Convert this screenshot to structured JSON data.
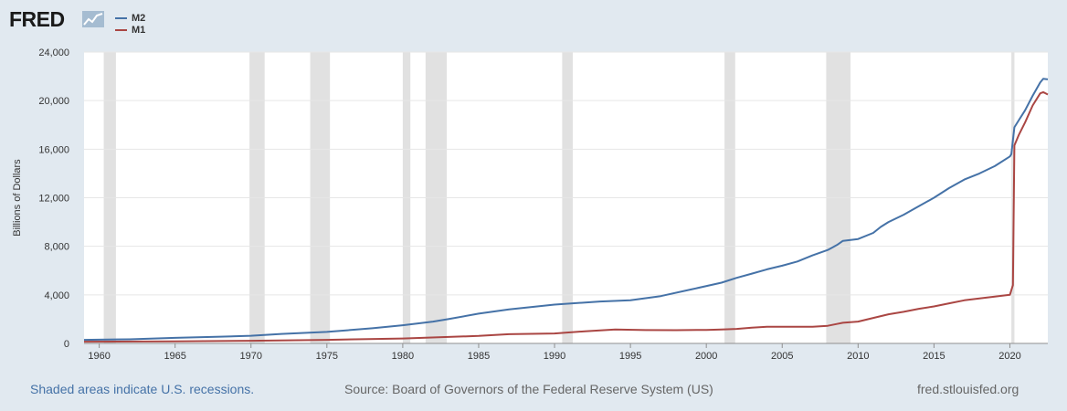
{
  "logo": {
    "text": "FRED",
    "icon": "fred-trend-icon"
  },
  "colors": {
    "background": "#e1e9f0",
    "plot": "#ffffff",
    "grid": "#e6e6e6",
    "recession": "#e1e1e1",
    "m2": "#4572a7",
    "m1": "#aa4643",
    "axis": "#8f8f8f"
  },
  "footer": {
    "recession_note": "Shaded areas indicate U.S. recessions.",
    "source": "Source: Board of Governors of the Federal Reserve System (US)",
    "site": "fred.stlouisfed.org"
  },
  "chart_data": {
    "type": "line",
    "title": "",
    "xlabel": "",
    "ylabel": "Billions of Dollars",
    "xlim": [
      1959.0,
      2022.5
    ],
    "ylim": [
      0,
      24000
    ],
    "x_ticks": [
      1960,
      1965,
      1970,
      1975,
      1980,
      1985,
      1990,
      1995,
      2000,
      2005,
      2010,
      2015,
      2020
    ],
    "y_ticks": [
      0,
      4000,
      8000,
      12000,
      16000,
      20000,
      24000
    ],
    "y_tick_labels": [
      "0",
      "4,000",
      "8,000",
      "12,000",
      "16,000",
      "20,000",
      "24,000"
    ],
    "grid": true,
    "legend": "top-left",
    "recessions": [
      [
        1960.3,
        1961.1
      ],
      [
        1969.9,
        1970.9
      ],
      [
        1973.9,
        1975.2
      ],
      [
        1980.0,
        1980.5
      ],
      [
        1981.5,
        1982.9
      ],
      [
        1990.5,
        1991.2
      ],
      [
        2001.2,
        2001.9
      ],
      [
        2007.9,
        2009.5
      ],
      [
        2020.1,
        2020.3
      ]
    ],
    "series": [
      {
        "name": "M2",
        "color": "#4572a7",
        "points": [
          [
            1959,
            290
          ],
          [
            1960,
            305
          ],
          [
            1962,
            340
          ],
          [
            1965,
            460
          ],
          [
            1968,
            560
          ],
          [
            1970,
            630
          ],
          [
            1972,
            780
          ],
          [
            1975,
            950
          ],
          [
            1978,
            1250
          ],
          [
            1980,
            1500
          ],
          [
            1982,
            1800
          ],
          [
            1983,
            2000
          ],
          [
            1985,
            2450
          ],
          [
            1987,
            2800
          ],
          [
            1990,
            3200
          ],
          [
            1993,
            3450
          ],
          [
            1995,
            3550
          ],
          [
            1997,
            3900
          ],
          [
            1999,
            4450
          ],
          [
            2001,
            5000
          ],
          [
            2002,
            5400
          ],
          [
            2003,
            5750
          ],
          [
            2004,
            6100
          ],
          [
            2005,
            6400
          ],
          [
            2006,
            6750
          ],
          [
            2007,
            7250
          ],
          [
            2008,
            7700
          ],
          [
            2008.6,
            8100
          ],
          [
            2009,
            8450
          ],
          [
            2010,
            8600
          ],
          [
            2011,
            9100
          ],
          [
            2011.5,
            9600
          ],
          [
            2012,
            10000
          ],
          [
            2013,
            10600
          ],
          [
            2014,
            11300
          ],
          [
            2015,
            12000
          ],
          [
            2016,
            12800
          ],
          [
            2017,
            13500
          ],
          [
            2018,
            14000
          ],
          [
            2019,
            14600
          ],
          [
            2020.0,
            15400
          ],
          [
            2020.1,
            15600
          ],
          [
            2020.3,
            17800
          ],
          [
            2020.6,
            18400
          ],
          [
            2021.0,
            19200
          ],
          [
            2021.5,
            20400
          ],
          [
            2022.0,
            21500
          ],
          [
            2022.2,
            21800
          ],
          [
            2022.5,
            21750
          ]
        ]
      },
      {
        "name": "M1",
        "color": "#aa4643",
        "points": [
          [
            1959,
            140
          ],
          [
            1965,
            170
          ],
          [
            1970,
            215
          ],
          [
            1975,
            290
          ],
          [
            1980,
            410
          ],
          [
            1985,
            620
          ],
          [
            1987,
            760
          ],
          [
            1990,
            820
          ],
          [
            1992,
            1000
          ],
          [
            1994,
            1150
          ],
          [
            1996,
            1100
          ],
          [
            1998,
            1090
          ],
          [
            2000,
            1110
          ],
          [
            2001,
            1150
          ],
          [
            2002,
            1200
          ],
          [
            2003,
            1300
          ],
          [
            2004,
            1370
          ],
          [
            2005,
            1380
          ],
          [
            2007,
            1370
          ],
          [
            2008,
            1450
          ],
          [
            2008.6,
            1600
          ],
          [
            2009,
            1700
          ],
          [
            2010,
            1800
          ],
          [
            2011,
            2100
          ],
          [
            2012,
            2400
          ],
          [
            2013,
            2600
          ],
          [
            2014,
            2850
          ],
          [
            2015,
            3050
          ],
          [
            2016,
            3300
          ],
          [
            2017,
            3550
          ],
          [
            2018,
            3700
          ],
          [
            2019,
            3850
          ],
          [
            2020.0,
            4000
          ],
          [
            2020.2,
            4800
          ],
          [
            2020.3,
            16300
          ],
          [
            2020.6,
            17200
          ],
          [
            2021.0,
            18200
          ],
          [
            2021.5,
            19600
          ],
          [
            2022.0,
            20600
          ],
          [
            2022.2,
            20700
          ],
          [
            2022.5,
            20500
          ]
        ]
      }
    ]
  }
}
